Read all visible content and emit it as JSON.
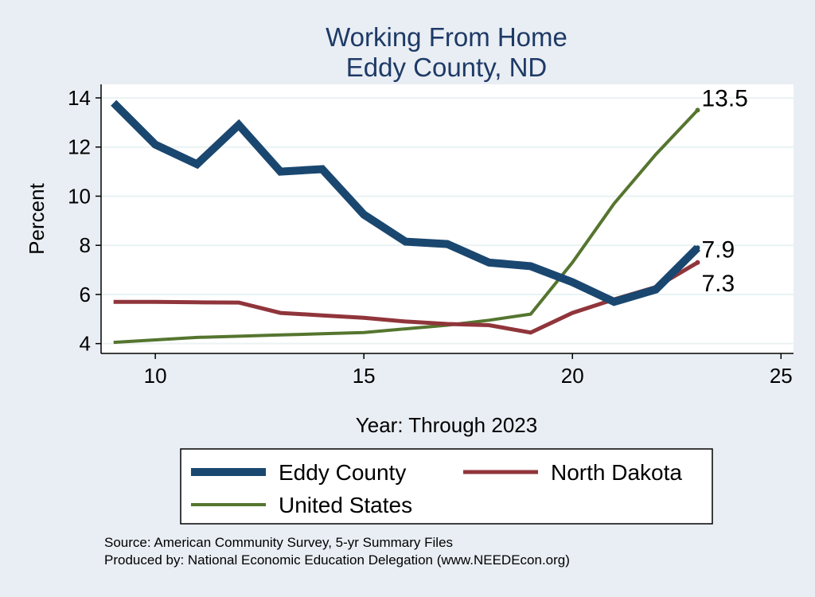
{
  "chart_data": {
    "type": "line",
    "title": "Working From Home",
    "subtitle": "Eddy County, ND",
    "xlabel": "Year: Through 2023",
    "ylabel": "Percent",
    "xlim": [
      8.7,
      25.3
    ],
    "ylim": [
      3.6,
      14.55
    ],
    "x_ticks": [
      10,
      15,
      20,
      25
    ],
    "y_ticks": [
      4,
      6,
      8,
      10,
      12,
      14
    ],
    "grid": true,
    "legend_position": "bottom",
    "series": [
      {
        "name": "Eddy County",
        "color": "#1a476f",
        "x": [
          9,
          10,
          11,
          12,
          13,
          14,
          15,
          16,
          17,
          18,
          19,
          20,
          21,
          22,
          23
        ],
        "values": [
          13.8,
          12.1,
          11.3,
          12.9,
          11.0,
          11.1,
          9.25,
          8.15,
          8.05,
          7.3,
          7.15,
          6.5,
          5.7,
          6.2,
          7.9
        ],
        "end_label": "7.9"
      },
      {
        "name": "North Dakota",
        "color": "#90353b",
        "x": [
          9,
          10,
          11,
          12,
          13,
          14,
          15,
          16,
          17,
          18,
          19,
          20,
          21,
          22,
          23
        ],
        "values": [
          5.7,
          5.7,
          5.68,
          5.67,
          5.25,
          5.15,
          5.05,
          4.9,
          4.8,
          4.75,
          4.45,
          5.25,
          5.8,
          6.3,
          7.3
        ],
        "end_label": "7.3"
      },
      {
        "name": "United States",
        "color": "#55752f",
        "x": [
          9,
          10,
          11,
          12,
          13,
          14,
          15,
          16,
          17,
          18,
          19,
          20,
          21,
          22,
          23
        ],
        "values": [
          4.05,
          4.15,
          4.25,
          4.3,
          4.35,
          4.4,
          4.45,
          4.6,
          4.75,
          4.95,
          5.2,
          7.3,
          9.7,
          11.7,
          13.5
        ],
        "end_label": "13.5"
      }
    ],
    "legend_entries": [
      "Eddy County",
      "North Dakota",
      "United States"
    ]
  },
  "notes": [
    "Source: American Community Survey, 5-yr Summary Files",
    "Produced by: National Economic Education Delegation (www.NEEDEcon.org)"
  ]
}
